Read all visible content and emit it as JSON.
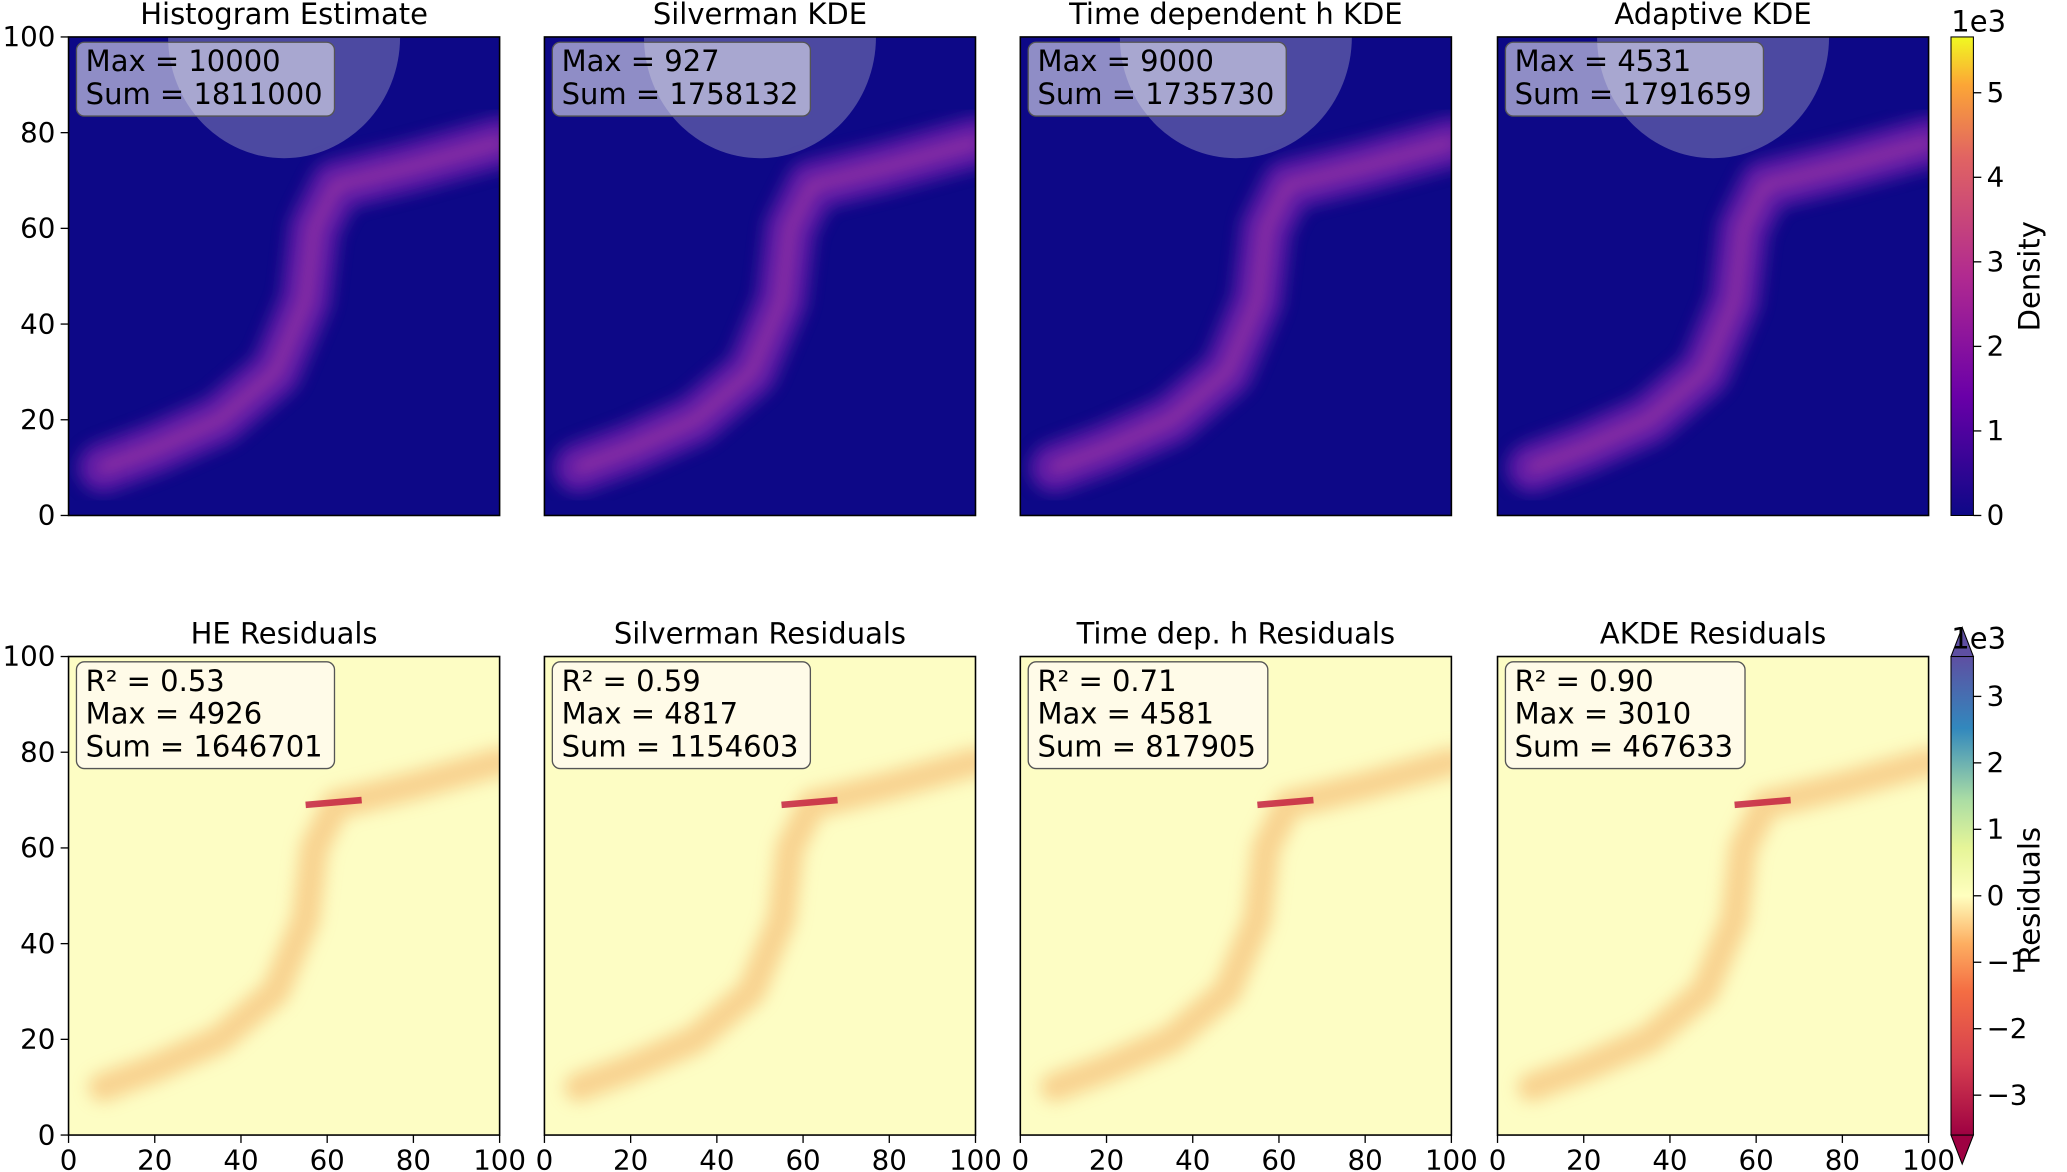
{
  "chart_data": [
    {
      "type": "heatmap",
      "title": "Histogram Estimate",
      "annotations": [
        "Max = 10000",
        "Sum = 1811000"
      ],
      "xlim": [
        0,
        100
      ],
      "ylim": [
        0,
        100
      ],
      "yticks": [
        0,
        20,
        40,
        60,
        80,
        100
      ],
      "colormap": "plasma"
    },
    {
      "type": "heatmap",
      "title": "Silverman KDE",
      "annotations": [
        "Max = 927",
        "Sum = 1758132"
      ],
      "xlim": [
        0,
        100
      ],
      "ylim": [
        0,
        100
      ],
      "colormap": "plasma"
    },
    {
      "type": "heatmap",
      "title": "Time dependent h KDE",
      "annotations": [
        "Max = 9000",
        "Sum = 1735730"
      ],
      "xlim": [
        0,
        100
      ],
      "ylim": [
        0,
        100
      ],
      "colormap": "plasma"
    },
    {
      "type": "heatmap",
      "title": "Adaptive KDE",
      "annotations": [
        "Max = 4531",
        "Sum = 1791659"
      ],
      "xlim": [
        0,
        100
      ],
      "ylim": [
        0,
        100
      ],
      "colormap": "plasma",
      "colorbar": {
        "label": "Density",
        "offset_text": "1e3",
        "lim": [
          0,
          5.66
        ],
        "ticks": [
          0,
          1,
          2,
          3,
          4,
          5
        ]
      }
    },
    {
      "type": "heatmap",
      "title": "HE Residuals",
      "annotations": [
        "R² = 0.53",
        "Max = 4926",
        "Sum = 1646701"
      ],
      "xlim": [
        0,
        100
      ],
      "ylim": [
        0,
        100
      ],
      "xticks": [
        0,
        20,
        40,
        60,
        80,
        100
      ],
      "yticks": [
        0,
        20,
        40,
        60,
        80,
        100
      ],
      "colormap": "Spectral"
    },
    {
      "type": "heatmap",
      "title": "Silverman Residuals",
      "annotations": [
        "R² = 0.59",
        "Max = 4817",
        "Sum = 1154603"
      ],
      "xlim": [
        0,
        100
      ],
      "ylim": [
        0,
        100
      ],
      "xticks": [
        0,
        20,
        40,
        60,
        80,
        100
      ],
      "colormap": "Spectral"
    },
    {
      "type": "heatmap",
      "title": "Time dep. h Residuals",
      "annotations": [
        "R² = 0.71",
        "Max = 4581",
        "Sum = 817905"
      ],
      "xlim": [
        0,
        100
      ],
      "ylim": [
        0,
        100
      ],
      "xticks": [
        0,
        20,
        40,
        60,
        80,
        100
      ],
      "colormap": "Spectral"
    },
    {
      "type": "heatmap",
      "title": "AKDE Residuals",
      "annotations": [
        "R² = 0.90",
        "Max = 3010",
        "Sum = 467633"
      ],
      "xlim": [
        0,
        100
      ],
      "ylim": [
        0,
        100
      ],
      "xticks": [
        0,
        20,
        40,
        60,
        80,
        100
      ],
      "colormap": "Spectral",
      "colorbar": {
        "label": "Residuals",
        "offset_text": "1e3",
        "lim": [
          -3.6,
          3.6
        ],
        "ticks": [
          {
            "value": -3,
            "label": "−3"
          },
          {
            "value": -2,
            "label": "−2"
          },
          {
            "value": -1,
            "label": "−1"
          },
          0,
          1,
          2,
          3
        ],
        "extend": "both"
      }
    }
  ]
}
